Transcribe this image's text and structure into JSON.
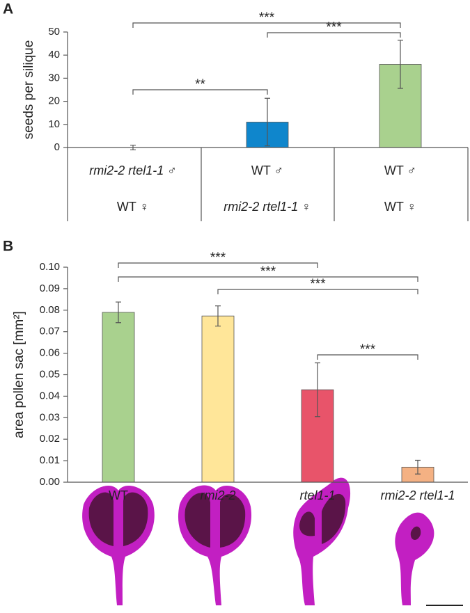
{
  "chart_data": [
    {
      "type": "bar",
      "panel": "A",
      "y_label": "seeds per silique",
      "male_parent": [
        "rmi2-2 rtel1-1 ♂",
        "WT ♂",
        "WT ♂"
      ],
      "female_parent": [
        "WT ♀",
        "rmi2-2 rtel1-1 ♀",
        "WT ♀"
      ],
      "values": [
        0,
        11,
        36
      ],
      "errors": [
        1,
        10.3,
        10.4
      ],
      "colors": [
        "#a9d18e",
        "#0f86cc",
        "#a9d18e"
      ],
      "ylim": [
        0,
        50
      ],
      "yticks": [
        0,
        10,
        20,
        30,
        40,
        50
      ],
      "comparisons": [
        {
          "pair": [
            0,
            2
          ],
          "label": "***"
        },
        {
          "pair": [
            1,
            2
          ],
          "label": "***"
        },
        {
          "pair": [
            0,
            1
          ],
          "label": "**"
        }
      ]
    },
    {
      "type": "bar",
      "panel": "B",
      "y_label": "area pollen sac [mm²]",
      "categories": [
        "WT",
        "rmi2-2",
        "rtel1-1",
        "rmi2-2 rtel1-1"
      ],
      "values": [
        0.079,
        0.0773,
        0.043,
        0.007
      ],
      "errors": [
        0.0048,
        0.0047,
        0.0125,
        0.0032
      ],
      "colors": [
        "#a9d18e",
        "#ffe699",
        "#e8546a",
        "#f4b183"
      ],
      "ylim": [
        0,
        0.1
      ],
      "yticks": [
        {
          "value": 0,
          "label": "0.00"
        },
        {
          "value": 0.01,
          "label": "0.01"
        },
        {
          "value": 0.02,
          "label": "0.02"
        },
        {
          "value": 0.03,
          "label": "0.03"
        },
        {
          "value": 0.04,
          "label": "0.04"
        },
        {
          "value": 0.05,
          "label": "0.05"
        },
        {
          "value": 0.06,
          "label": "0.06"
        },
        {
          "value": 0.07,
          "label": "0.07"
        },
        {
          "value": 0.08,
          "label": "0.08"
        },
        {
          "value": 0.09,
          "label": "0.09"
        },
        {
          "value": 0.1,
          "label": "0.10"
        }
      ],
      "comparisons": [
        {
          "pair": [
            0,
            2
          ],
          "label": "***"
        },
        {
          "pair": [
            0,
            3
          ],
          "label": "***"
        },
        {
          "pair": [
            1,
            3
          ],
          "label": "***"
        },
        {
          "pair": [
            2,
            3
          ],
          "label": "***"
        }
      ]
    }
  ]
}
